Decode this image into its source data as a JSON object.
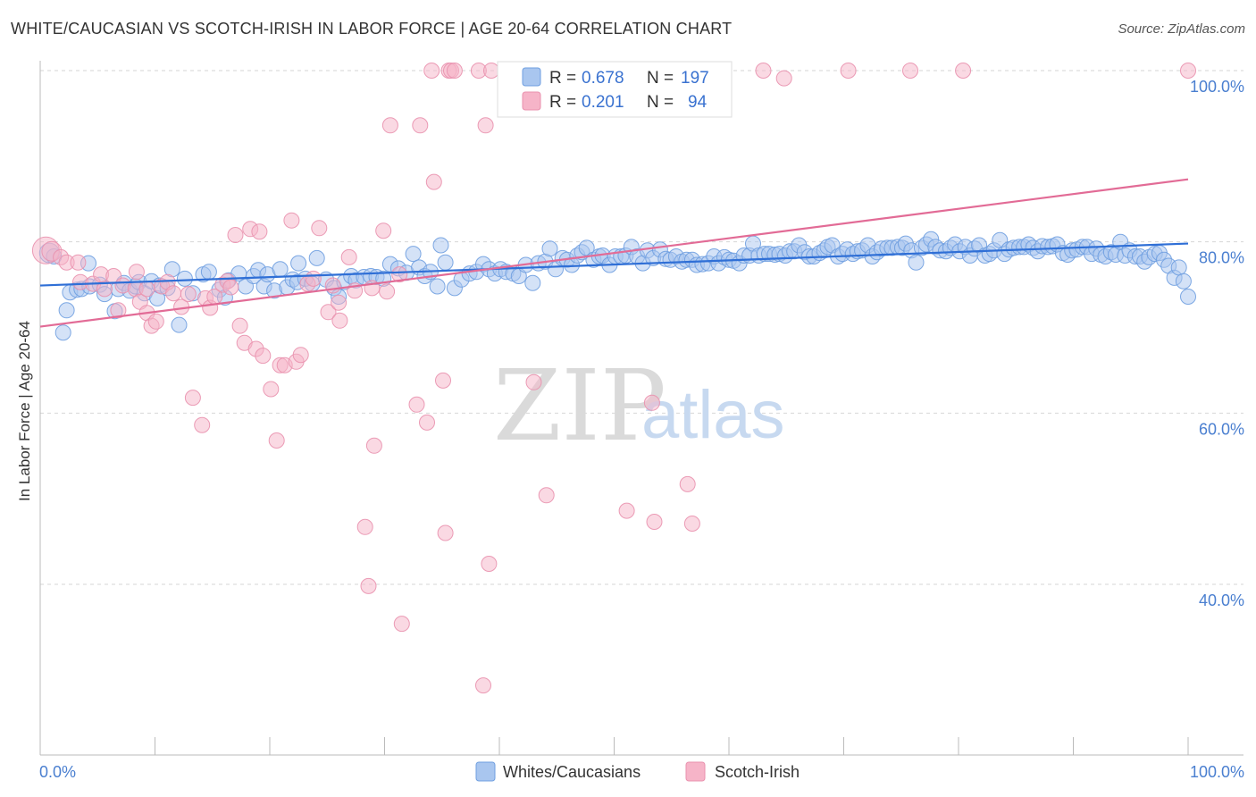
{
  "title": "WHITE/CAUCASIAN VS SCOTCH-IRISH IN LABOR FORCE | AGE 20-64 CORRELATION CHART",
  "source": "Source: ZipAtlas.com",
  "watermark": {
    "zip": "ZIP",
    "atlas": "atlas"
  },
  "legend": {
    "r_label": "R =",
    "n_label": "N =",
    "rows": [
      {
        "r": "0.678",
        "n": "197",
        "color": "#a9c6ef",
        "stroke": "#6f9fe0"
      },
      {
        "r": "0.201",
        "n": " 94",
        "color": "#f6b4c8",
        "stroke": "#e991ae"
      }
    ]
  },
  "bottom_legend": [
    "Whites/Caucasians",
    "Scotch-Irish"
  ],
  "chart_data": {
    "type": "scatter",
    "title": "WHITE/CAUCASIAN VS SCOTCH-IRISH IN LABOR FORCE | AGE 20-64 CORRELATION CHART",
    "xlabel": "",
    "ylabel": "In Labor Force | Age 20-64",
    "xlim": [
      0,
      100
    ],
    "ylim": [
      22,
      102
    ],
    "x_tick_labels": [
      "0.0%",
      "100.0%"
    ],
    "y_ticks": [
      40,
      60,
      80,
      100
    ],
    "y_tick_labels": [
      "40.0%",
      "60.0%",
      "80.0%",
      "100.0%"
    ],
    "grid": true,
    "legend_position": "top-center",
    "series": [
      {
        "name": "Whites/Caucasians",
        "color": "#6f9fe0",
        "fill": "#a9c6ef",
        "trend": {
          "x": [
            0,
            100
          ],
          "y": [
            74.9,
            79.8
          ]
        },
        "points": [
          [
            0.8,
            78.7
          ],
          [
            1.2,
            78.3
          ],
          [
            2,
            69.4
          ],
          [
            2.3,
            72.0
          ],
          [
            2.6,
            74.1
          ],
          [
            3.2,
            74.4
          ],
          [
            3.6,
            74.5
          ],
          [
            4.2,
            77.5
          ],
          [
            4.3,
            74.8
          ],
          [
            5.2,
            75.0
          ],
          [
            5.6,
            73.9
          ],
          [
            6.5,
            71.9
          ],
          [
            6.8,
            74.5
          ],
          [
            7.3,
            75.2
          ],
          [
            7.8,
            74.3
          ],
          [
            8.3,
            74.8
          ],
          [
            8.6,
            75.3
          ],
          [
            9.1,
            74.0
          ],
          [
            9.7,
            75.4
          ],
          [
            10.2,
            73.4
          ],
          [
            10.4,
            74.9
          ],
          [
            11.1,
            74.6
          ],
          [
            11.5,
            76.8
          ],
          [
            12.1,
            70.3
          ],
          [
            12.6,
            75.7
          ],
          [
            13.3,
            74.0
          ],
          [
            14.2,
            76.2
          ],
          [
            14.7,
            76.5
          ],
          [
            15.6,
            74.4
          ],
          [
            16.4,
            75.5
          ],
          [
            16.1,
            73.5
          ],
          [
            17.3,
            76.3
          ],
          [
            17.9,
            74.8
          ],
          [
            18.6,
            76.0
          ],
          [
            19.0,
            76.7
          ],
          [
            19.5,
            74.8
          ],
          [
            19.8,
            76.2
          ],
          [
            20.4,
            74.3
          ],
          [
            20.9,
            76.8
          ],
          [
            21.5,
            74.7
          ],
          [
            22.0,
            75.6
          ],
          [
            22.5,
            77.5
          ],
          [
            22.4,
            75.3
          ],
          [
            23.1,
            75.7
          ],
          [
            23.7,
            75.1
          ],
          [
            24.1,
            78.1
          ],
          [
            24.9,
            75.6
          ],
          [
            25.6,
            74.6
          ],
          [
            26.5,
            75.3
          ],
          [
            26.0,
            73.6
          ],
          [
            27.1,
            76.0
          ],
          [
            27.5,
            75.5
          ],
          [
            28.2,
            75.9
          ],
          [
            28.8,
            76.0
          ],
          [
            29.3,
            75.9
          ],
          [
            29.9,
            75.7
          ],
          [
            30.5,
            77.4
          ],
          [
            31.2,
            76.9
          ],
          [
            31.9,
            76.4
          ],
          [
            32.5,
            78.6
          ],
          [
            33.0,
            77.0
          ],
          [
            33.5,
            76.0
          ],
          [
            34.0,
            76.5
          ],
          [
            34.9,
            79.6
          ],
          [
            34.6,
            74.8
          ],
          [
            35.3,
            77.6
          ],
          [
            36.1,
            74.6
          ],
          [
            36.7,
            75.6
          ],
          [
            37.4,
            76.3
          ],
          [
            38.0,
            76.5
          ],
          [
            38.6,
            77.4
          ],
          [
            39.1,
            76.8
          ],
          [
            39.6,
            76.3
          ],
          [
            40.1,
            76.8
          ],
          [
            40.6,
            76.5
          ],
          [
            41.2,
            76.3
          ],
          [
            41.7,
            76.0
          ],
          [
            42.3,
            77.3
          ],
          [
            42.9,
            75.2
          ],
          [
            43.4,
            77.5
          ],
          [
            44.0,
            77.7
          ],
          [
            44.4,
            79.2
          ],
          [
            44.9,
            76.8
          ],
          [
            45.5,
            78.1
          ],
          [
            45.9,
            77.9
          ],
          [
            46.3,
            77.3
          ],
          [
            46.8,
            78.4
          ],
          [
            47.2,
            78.8
          ],
          [
            47.6,
            79.3
          ],
          [
            48.2,
            77.9
          ],
          [
            48.7,
            78.3
          ],
          [
            49.0,
            78.4
          ],
          [
            49.6,
            77.3
          ],
          [
            50.1,
            78.3
          ],
          [
            50.6,
            78.3
          ],
          [
            51.0,
            78.4
          ],
          [
            51.5,
            79.4
          ],
          [
            52.0,
            78.3
          ],
          [
            52.5,
            77.5
          ],
          [
            52.9,
            79.0
          ],
          [
            53.4,
            78.1
          ],
          [
            54.0,
            79.1
          ],
          [
            54.5,
            78.0
          ],
          [
            54.9,
            77.9
          ],
          [
            55.4,
            78.3
          ],
          [
            55.9,
            77.7
          ],
          [
            56.3,
            77.9
          ],
          [
            56.8,
            77.9
          ],
          [
            57.2,
            77.3
          ],
          [
            57.7,
            77.4
          ],
          [
            58.2,
            77.5
          ],
          [
            58.7,
            78.3
          ],
          [
            59.1,
            77.5
          ],
          [
            59.6,
            78.2
          ],
          [
            60.0,
            77.9
          ],
          [
            60.4,
            77.8
          ],
          [
            60.9,
            77.5
          ],
          [
            61.3,
            78.4
          ],
          [
            61.8,
            78.4
          ],
          [
            62.1,
            79.8
          ],
          [
            62.6,
            78.4
          ],
          [
            63.1,
            78.6
          ],
          [
            63.5,
            78.6
          ],
          [
            64.0,
            78.5
          ],
          [
            64.4,
            78.6
          ],
          [
            64.9,
            78.4
          ],
          [
            65.3,
            78.9
          ],
          [
            65.7,
            78.9
          ],
          [
            66.1,
            79.6
          ],
          [
            66.6,
            78.8
          ],
          [
            67.0,
            78.3
          ],
          [
            67.4,
            78.3
          ],
          [
            67.9,
            78.7
          ],
          [
            68.3,
            79.0
          ],
          [
            68.6,
            79.4
          ],
          [
            69.0,
            79.6
          ],
          [
            69.5,
            78.3
          ],
          [
            69.9,
            78.6
          ],
          [
            70.3,
            79.1
          ],
          [
            70.8,
            78.6
          ],
          [
            71.2,
            78.9
          ],
          [
            71.6,
            79.0
          ],
          [
            72.1,
            79.6
          ],
          [
            72.5,
            78.3
          ],
          [
            72.9,
            78.8
          ],
          [
            73.3,
            79.2
          ],
          [
            73.8,
            79.3
          ],
          [
            74.2,
            79.3
          ],
          [
            74.7,
            79.4
          ],
          [
            75.1,
            79.3
          ],
          [
            75.4,
            79.8
          ],
          [
            75.9,
            79.0
          ],
          [
            76.3,
            77.6
          ],
          [
            76.8,
            79.3
          ],
          [
            77.2,
            79.7
          ],
          [
            77.6,
            80.3
          ],
          [
            78.0,
            79.4
          ],
          [
            78.4,
            79.0
          ],
          [
            78.9,
            78.9
          ],
          [
            79.3,
            79.3
          ],
          [
            79.7,
            79.7
          ],
          [
            80.1,
            78.9
          ],
          [
            80.6,
            79.4
          ],
          [
            81.0,
            78.4
          ],
          [
            81.4,
            79.2
          ],
          [
            81.8,
            79.6
          ],
          [
            82.3,
            78.4
          ],
          [
            82.7,
            78.6
          ],
          [
            83.1,
            79.0
          ],
          [
            83.6,
            80.2
          ],
          [
            84.0,
            78.6
          ],
          [
            84.4,
            79.1
          ],
          [
            84.8,
            79.3
          ],
          [
            85.3,
            79.4
          ],
          [
            85.7,
            79.4
          ],
          [
            86.1,
            79.7
          ],
          [
            86.5,
            79.3
          ],
          [
            86.9,
            78.9
          ],
          [
            87.3,
            79.5
          ],
          [
            87.8,
            79.4
          ],
          [
            88.2,
            79.5
          ],
          [
            88.6,
            79.7
          ],
          [
            89.1,
            78.7
          ],
          [
            89.5,
            78.5
          ],
          [
            89.9,
            79.0
          ],
          [
            90.3,
            79.1
          ],
          [
            90.8,
            79.4
          ],
          [
            91.2,
            79.4
          ],
          [
            91.6,
            78.6
          ],
          [
            92.0,
            79.2
          ],
          [
            92.4,
            78.5
          ],
          [
            92.8,
            78.3
          ],
          [
            93.3,
            78.8
          ],
          [
            93.7,
            78.5
          ],
          [
            94.1,
            80.0
          ],
          [
            94.5,
            78.4
          ],
          [
            94.9,
            79.0
          ],
          [
            95.4,
            78.3
          ],
          [
            95.8,
            78.3
          ],
          [
            96.2,
            77.7
          ],
          [
            96.6,
            78.2
          ],
          [
            97.1,
            78.6
          ],
          [
            97.5,
            78.7
          ],
          [
            97.9,
            77.9
          ],
          [
            98.3,
            77.2
          ],
          [
            98.8,
            75.8
          ],
          [
            99.2,
            77.0
          ],
          [
            99.6,
            75.4
          ],
          [
            100.0,
            73.6
          ]
        ]
      },
      {
        "name": "Scotch-Irish",
        "color": "#e991ae",
        "fill": "#f6b4c8",
        "trend": {
          "x": [
            0,
            100
          ],
          "y": [
            70.1,
            87.3
          ]
        },
        "points": [
          [
            0.5,
            79.0
          ],
          [
            1.0,
            78.9
          ],
          [
            1.8,
            78.2
          ],
          [
            2.3,
            77.6
          ],
          [
            3.3,
            77.6
          ],
          [
            3.5,
            75.3
          ],
          [
            4.6,
            75.1
          ],
          [
            5.3,
            76.2
          ],
          [
            5.6,
            74.5
          ],
          [
            6.4,
            76.0
          ],
          [
            6.8,
            72.0
          ],
          [
            7.2,
            74.9
          ],
          [
            8.4,
            76.5
          ],
          [
            8.3,
            74.5
          ],
          [
            8.7,
            73.0
          ],
          [
            9.3,
            74.5
          ],
          [
            9.3,
            71.7
          ],
          [
            9.7,
            70.2
          ],
          [
            10.1,
            70.7
          ],
          [
            10.6,
            74.8
          ],
          [
            11.1,
            75.3
          ],
          [
            11.6,
            74.0
          ],
          [
            12.3,
            72.4
          ],
          [
            12.9,
            73.9
          ],
          [
            13.3,
            61.8
          ],
          [
            14.1,
            58.6
          ],
          [
            14.4,
            73.4
          ],
          [
            14.8,
            72.3
          ],
          [
            15.2,
            73.6
          ],
          [
            15.9,
            75.0
          ],
          [
            16.3,
            75.4
          ],
          [
            16.6,
            74.7
          ],
          [
            17.0,
            80.8
          ],
          [
            17.4,
            70.2
          ],
          [
            17.8,
            68.2
          ],
          [
            18.3,
            81.5
          ],
          [
            18.8,
            67.5
          ],
          [
            19.1,
            81.2
          ],
          [
            19.4,
            66.7
          ],
          [
            20.1,
            62.8
          ],
          [
            20.6,
            56.8
          ],
          [
            20.9,
            65.6
          ],
          [
            21.3,
            65.6
          ],
          [
            21.9,
            82.5
          ],
          [
            22.3,
            66.0
          ],
          [
            22.7,
            66.8
          ],
          [
            23.3,
            75.1
          ],
          [
            23.8,
            75.7
          ],
          [
            24.3,
            81.6
          ],
          [
            25.1,
            71.8
          ],
          [
            25.5,
            74.9
          ],
          [
            26.0,
            72.9
          ],
          [
            26.1,
            70.8
          ],
          [
            26.9,
            78.2
          ],
          [
            27.4,
            74.3
          ],
          [
            28.3,
            46.7
          ],
          [
            28.6,
            39.8
          ],
          [
            28.9,
            74.6
          ],
          [
            29.1,
            56.2
          ],
          [
            29.9,
            81.3
          ],
          [
            30.2,
            74.2
          ],
          [
            30.5,
            93.6
          ],
          [
            31.3,
            76.2
          ],
          [
            31.5,
            35.4
          ],
          [
            32.8,
            61.0
          ],
          [
            33.1,
            93.6
          ],
          [
            33.7,
            58.9
          ],
          [
            34.1,
            100.0
          ],
          [
            34.3,
            87.0
          ],
          [
            35.1,
            63.8
          ],
          [
            35.3,
            46.0
          ],
          [
            35.6,
            100.0
          ],
          [
            35.8,
            100.0
          ],
          [
            36.1,
            100.0
          ],
          [
            38.2,
            100.0
          ],
          [
            38.6,
            28.2
          ],
          [
            38.8,
            93.6
          ],
          [
            39.1,
            42.4
          ],
          [
            39.3,
            100.0
          ],
          [
            40.8,
            100.0
          ],
          [
            43.0,
            63.6
          ],
          [
            44.1,
            50.4
          ],
          [
            50.5,
            100.0
          ],
          [
            51.1,
            48.6
          ],
          [
            53.3,
            61.2
          ],
          [
            53.5,
            47.3
          ],
          [
            56.4,
            51.7
          ],
          [
            56.8,
            47.1
          ],
          [
            63.0,
            100.0
          ],
          [
            64.8,
            99.1
          ],
          [
            70.4,
            100.0
          ],
          [
            75.8,
            100.0
          ],
          [
            80.4,
            100.0
          ],
          [
            100.0,
            100.0
          ]
        ]
      }
    ]
  }
}
